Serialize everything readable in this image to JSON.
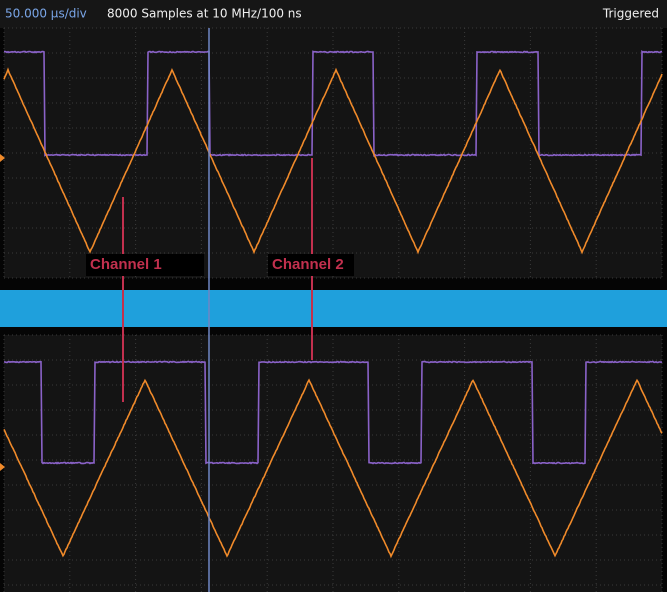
{
  "header": {
    "timebase": "50.000 µs/div",
    "acquisition": "8000 Samples at 10 MHz/100 ns",
    "status": "Triggered"
  },
  "annotations": [
    "Channel 1",
    "Channel 2"
  ]
}
